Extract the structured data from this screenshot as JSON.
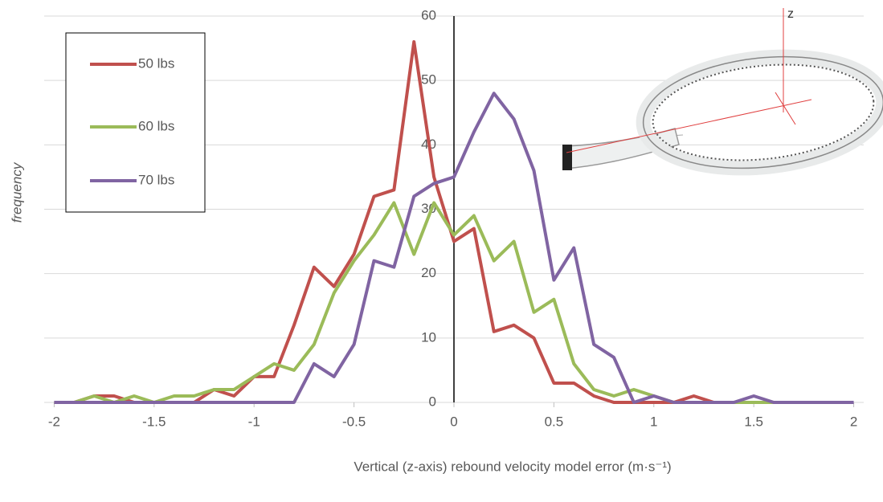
{
  "chart_data": {
    "type": "line",
    "xlabel": "Vertical (z-axis) rebound velocity model error (m·s⁻¹)",
    "ylabel": "frequency",
    "inset_label": "z",
    "x": [
      -2,
      -1.9,
      -1.8,
      -1.7,
      -1.6,
      -1.5,
      -1.4,
      -1.3,
      -1.2,
      -1.1,
      -1,
      -0.9,
      -0.8,
      -0.7,
      -0.6,
      -0.5,
      -0.4,
      -0.3,
      -0.2,
      -0.1,
      0,
      0.1,
      0.2,
      0.3,
      0.4,
      0.5,
      0.6,
      0.7,
      0.8,
      0.9,
      1,
      1.1,
      1.2,
      1.3,
      1.4,
      1.5,
      1.6,
      1.7,
      1.8,
      1.9,
      2
    ],
    "series": [
      {
        "name": "50 lbs",
        "color": "#c0504d",
        "values": [
          0,
          0,
          1,
          1,
          0,
          0,
          0,
          0,
          2,
          1,
          4,
          4,
          12,
          21,
          18,
          23,
          32,
          33,
          56,
          35,
          25,
          27,
          11,
          12,
          10,
          3,
          3,
          1,
          0,
          0,
          0,
          0,
          1,
          0,
          0,
          0,
          0,
          null,
          null,
          null,
          null
        ]
      },
      {
        "name": "60 lbs",
        "color": "#9bbb59",
        "values": [
          0,
          0,
          1,
          0,
          1,
          0,
          1,
          1,
          2,
          2,
          4,
          6,
          5,
          9,
          17,
          22,
          26,
          31,
          23,
          31,
          26,
          29,
          22,
          25,
          14,
          16,
          6,
          2,
          1,
          2,
          1,
          0,
          0,
          0,
          0,
          0,
          0,
          null,
          null,
          null,
          null
        ]
      },
      {
        "name": "70 lbs",
        "color": "#8064a2",
        "values": [
          0,
          0,
          0,
          0,
          0,
          0,
          0,
          0,
          0,
          0,
          0,
          0,
          0,
          6,
          4,
          9,
          22,
          21,
          32,
          34,
          35,
          42,
          48,
          44,
          36,
          19,
          24,
          9,
          7,
          0,
          1,
          0,
          0,
          0,
          0,
          1,
          0,
          0,
          0,
          0,
          0
        ]
      }
    ],
    "xlim": [
      -2.05,
      2.05
    ],
    "xticks": [
      -2,
      -1.5,
      -1,
      -0.5,
      0,
      0.5,
      1,
      1.5,
      2
    ],
    "ylim": [
      0,
      60
    ],
    "yticks": [
      0,
      10,
      20,
      30,
      40,
      50,
      60
    ],
    "grid": true,
    "legend": "upper left"
  }
}
